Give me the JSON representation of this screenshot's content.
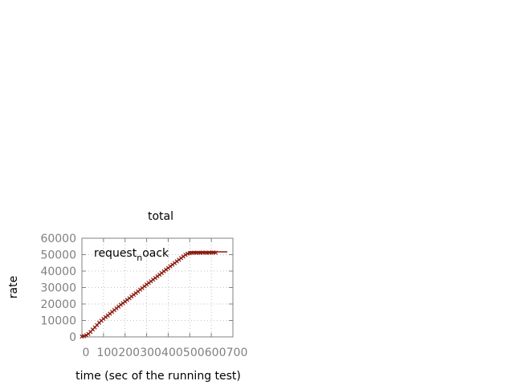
{
  "chart_data": {
    "type": "line",
    "title": "total",
    "xlabel": "time (sec of the running test)",
    "ylabel": "rate",
    "xlim": [
      0,
      700
    ],
    "ylim": [
      0,
      60000
    ],
    "xticks": [
      0,
      100,
      200,
      300,
      400,
      500,
      600,
      700
    ],
    "yticks": [
      0,
      10000,
      20000,
      30000,
      40000,
      50000,
      60000
    ],
    "grid": true,
    "legend_position": "top-right",
    "series": [
      {
        "name_parts": [
          "request",
          "n",
          "oack"
        ],
        "color": "#8b1a0e",
        "marker": "cross",
        "x": [
          0,
          10,
          20,
          30,
          40,
          50,
          60,
          70,
          80,
          90,
          100,
          110,
          120,
          130,
          140,
          150,
          160,
          170,
          180,
          190,
          200,
          210,
          220,
          230,
          240,
          250,
          260,
          270,
          280,
          290,
          300,
          310,
          320,
          330,
          340,
          350,
          360,
          370,
          380,
          390,
          400,
          410,
          420,
          430,
          440,
          450,
          460,
          470,
          480,
          490,
          500,
          510,
          520,
          530,
          540,
          550,
          560,
          570,
          580,
          590,
          600,
          610,
          620
        ],
        "y": [
          200,
          500,
          1000,
          1800,
          3000,
          4500,
          5800,
          7200,
          8600,
          9800,
          11000,
          12000,
          13000,
          14100,
          15200,
          16300,
          17400,
          18400,
          19500,
          20500,
          21500,
          22500,
          23500,
          24600,
          25600,
          26600,
          27600,
          28700,
          29700,
          30800,
          31800,
          32800,
          33800,
          34800,
          35800,
          36800,
          37800,
          38800,
          39900,
          40900,
          41900,
          42900,
          43900,
          44900,
          45900,
          46900,
          47900,
          48900,
          49900,
          50600,
          51000,
          51100,
          51200,
          51100,
          51200,
          51100,
          51300,
          51200,
          51100,
          51300,
          51200,
          51300,
          51200
        ]
      }
    ]
  }
}
